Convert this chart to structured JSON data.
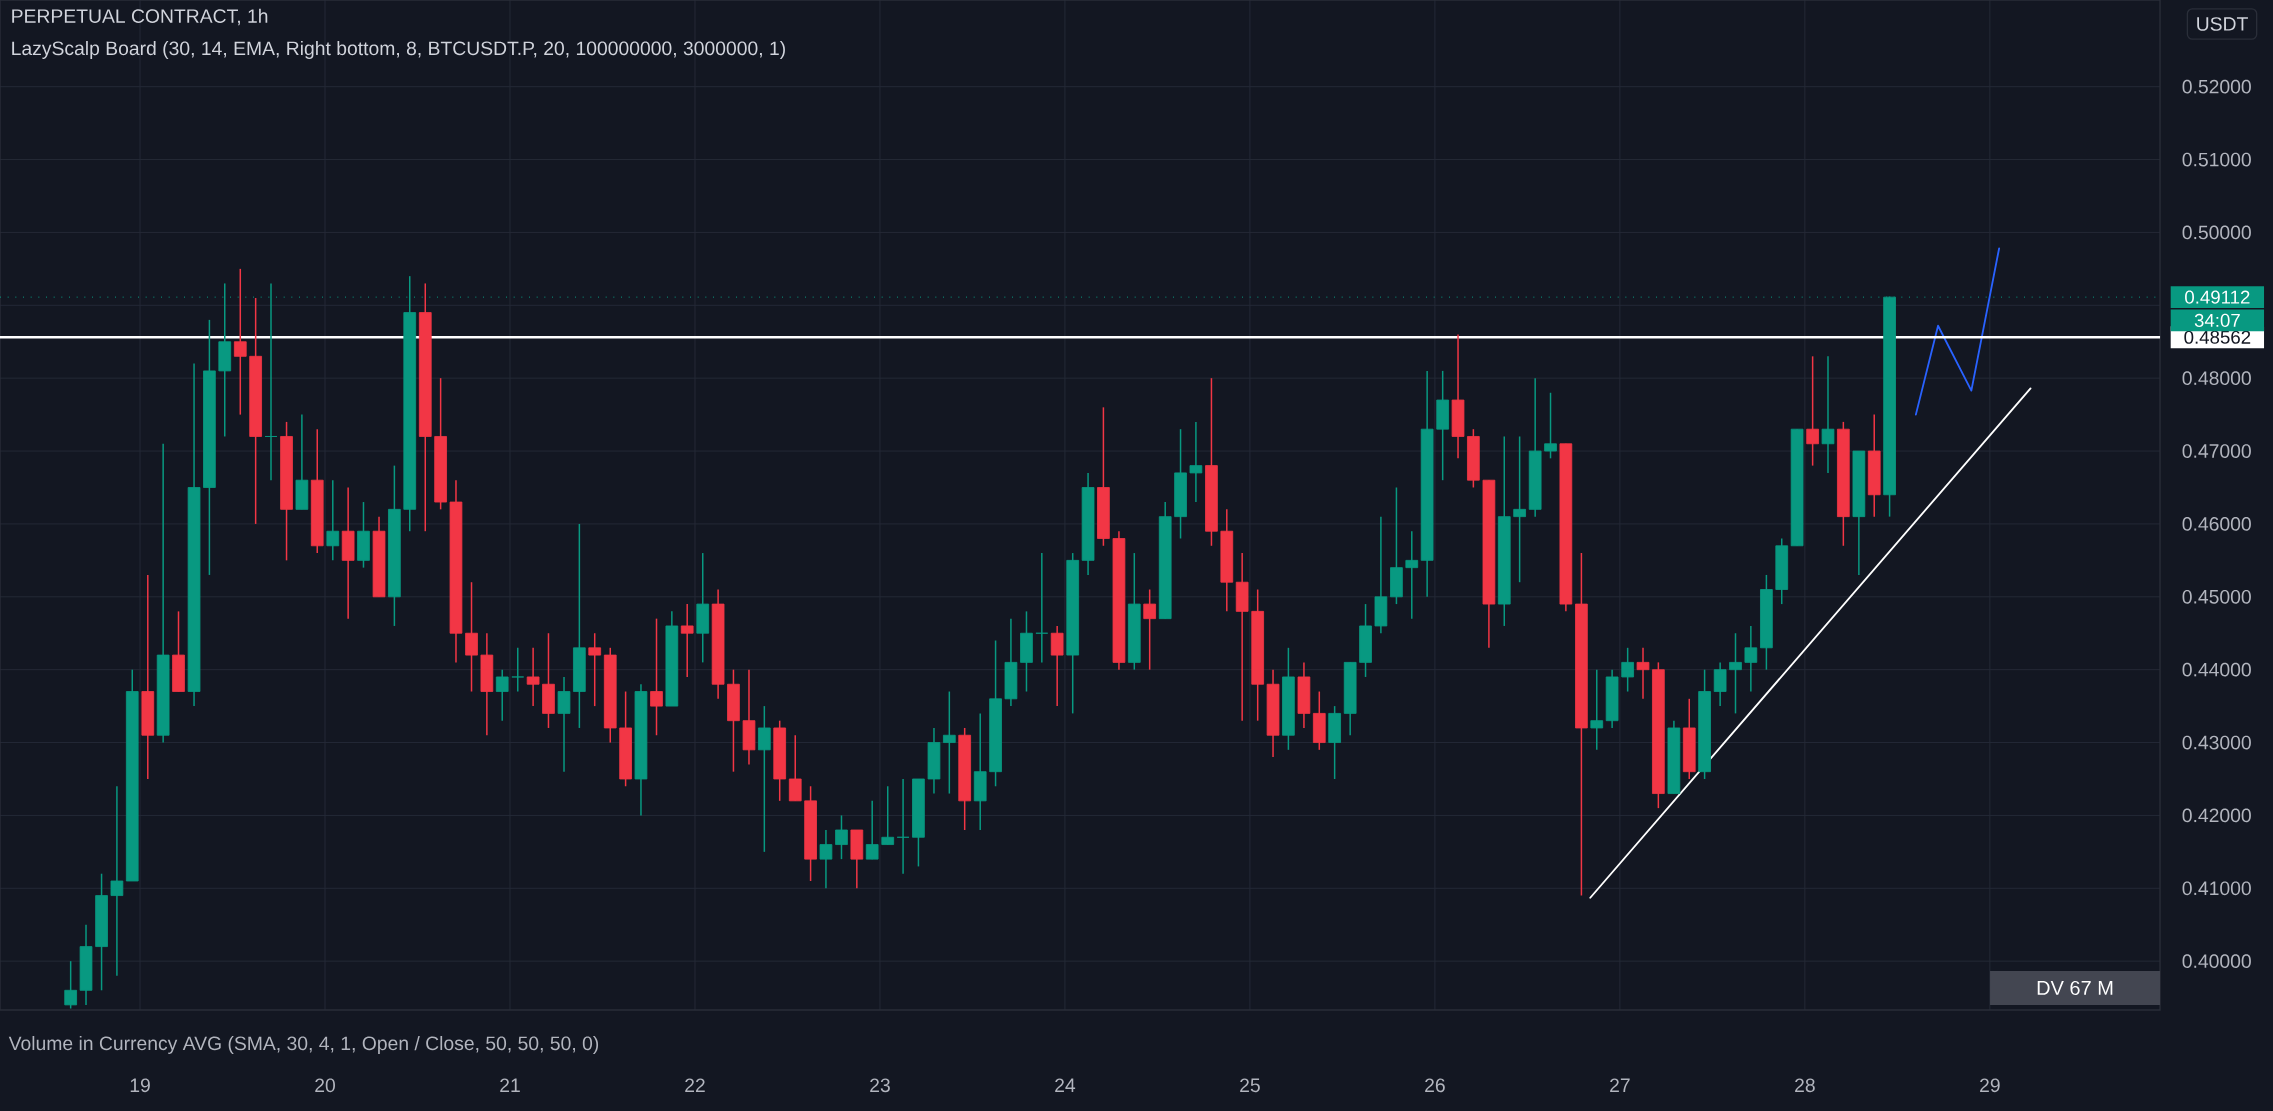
{
  "chart_data": {
    "type": "candlestick",
    "title": "PERPETUAL CONTRACT, 1h",
    "subtitle": "LazyScalp Board (30, 14, EMA, Right bottom, 8, BTCUSDT.P, 20, 100000000, 3000000, 1)",
    "ylabel": "USDT",
    "x": [
      18.625,
      18.708,
      18.792,
      18.875,
      18.958,
      19.042,
      19.125,
      19.208,
      19.292,
      19.375,
      19.458,
      19.542,
      19.625,
      19.708,
      19.792,
      19.875,
      19.958,
      20.042,
      20.125,
      20.208,
      20.292,
      20.375,
      20.458,
      20.542,
      20.625,
      20.708,
      20.792,
      20.875,
      20.958,
      21.042,
      21.125,
      21.208,
      21.292,
      21.375,
      21.458,
      21.542,
      21.625,
      21.708,
      21.792,
      21.875,
      21.958,
      22.042,
      22.125,
      22.208,
      22.292,
      22.375,
      22.458,
      22.542,
      22.625,
      22.708,
      22.792,
      22.875,
      22.958,
      23.042,
      23.125,
      23.208,
      23.292,
      23.375,
      23.458,
      23.542,
      23.625,
      23.708,
      23.792,
      23.875,
      23.958,
      24.042,
      24.125,
      24.208,
      24.292,
      24.375,
      24.458,
      24.542,
      24.625,
      24.708,
      24.792,
      24.875,
      24.958,
      25.042,
      25.125,
      25.208,
      25.292,
      25.375,
      25.458,
      25.542,
      25.625,
      25.708,
      25.792,
      25.875,
      25.958,
      26.042,
      26.125,
      26.208,
      26.292,
      26.375,
      26.458,
      26.542,
      26.625,
      26.708,
      26.792,
      26.875,
      26.958,
      27.042,
      27.125,
      27.208,
      27.292,
      27.375,
      27.458,
      27.542,
      27.625,
      27.708,
      27.792,
      27.875,
      27.958,
      28.042,
      28.125,
      28.208,
      28.292,
      28.375,
      28.458
    ],
    "ohlc": [
      [
        0.394,
        0.4,
        0.3935,
        0.396
      ],
      [
        0.396,
        0.405,
        0.394,
        0.402
      ],
      [
        0.402,
        0.412,
        0.396,
        0.409
      ],
      [
        0.409,
        0.424,
        0.398,
        0.411
      ],
      [
        0.411,
        0.44,
        0.411,
        0.437
      ],
      [
        0.437,
        0.453,
        0.425,
        0.431
      ],
      [
        0.431,
        0.471,
        0.43,
        0.442
      ],
      [
        0.442,
        0.448,
        0.437,
        0.437
      ],
      [
        0.437,
        0.482,
        0.435,
        0.465
      ],
      [
        0.465,
        0.488,
        0.453,
        0.481
      ],
      [
        0.481,
        0.493,
        0.472,
        0.485
      ],
      [
        0.485,
        0.495,
        0.475,
        0.483
      ],
      [
        0.483,
        0.491,
        0.46,
        0.472
      ],
      [
        0.472,
        0.493,
        0.466,
        0.472
      ],
      [
        0.472,
        0.474,
        0.455,
        0.462
      ],
      [
        0.462,
        0.475,
        0.462,
        0.466
      ],
      [
        0.466,
        0.473,
        0.456,
        0.457
      ],
      [
        0.457,
        0.466,
        0.455,
        0.459
      ],
      [
        0.459,
        0.465,
        0.447,
        0.455
      ],
      [
        0.455,
        0.463,
        0.454,
        0.459
      ],
      [
        0.459,
        0.461,
        0.45,
        0.45
      ],
      [
        0.45,
        0.468,
        0.446,
        0.462
      ],
      [
        0.462,
        0.494,
        0.459,
        0.489
      ],
      [
        0.489,
        0.493,
        0.459,
        0.472
      ],
      [
        0.472,
        0.48,
        0.462,
        0.463
      ],
      [
        0.463,
        0.466,
        0.441,
        0.445
      ],
      [
        0.445,
        0.452,
        0.437,
        0.442
      ],
      [
        0.442,
        0.445,
        0.431,
        0.437
      ],
      [
        0.437,
        0.44,
        0.433,
        0.439
      ],
      [
        0.439,
        0.443,
        0.437,
        0.439
      ],
      [
        0.439,
        0.443,
        0.435,
        0.438
      ],
      [
        0.438,
        0.445,
        0.432,
        0.434
      ],
      [
        0.434,
        0.439,
        0.426,
        0.437
      ],
      [
        0.437,
        0.46,
        0.432,
        0.443
      ],
      [
        0.443,
        0.445,
        0.435,
        0.442
      ],
      [
        0.442,
        0.443,
        0.43,
        0.432
      ],
      [
        0.432,
        0.437,
        0.424,
        0.425
      ],
      [
        0.425,
        0.438,
        0.42,
        0.437
      ],
      [
        0.437,
        0.447,
        0.431,
        0.435
      ],
      [
        0.435,
        0.448,
        0.435,
        0.446
      ],
      [
        0.446,
        0.449,
        0.439,
        0.445
      ],
      [
        0.445,
        0.456,
        0.441,
        0.449
      ],
      [
        0.449,
        0.451,
        0.436,
        0.438
      ],
      [
        0.438,
        0.44,
        0.426,
        0.433
      ],
      [
        0.433,
        0.44,
        0.427,
        0.429
      ],
      [
        0.429,
        0.435,
        0.415,
        0.432
      ],
      [
        0.432,
        0.433,
        0.422,
        0.425
      ],
      [
        0.425,
        0.431,
        0.422,
        0.422
      ],
      [
        0.422,
        0.424,
        0.411,
        0.414
      ],
      [
        0.414,
        0.418,
        0.41,
        0.416
      ],
      [
        0.416,
        0.42,
        0.414,
        0.418
      ],
      [
        0.418,
        0.418,
        0.41,
        0.414
      ],
      [
        0.414,
        0.422,
        0.414,
        0.416
      ],
      [
        0.416,
        0.424,
        0.416,
        0.417
      ],
      [
        0.417,
        0.425,
        0.412,
        0.417
      ],
      [
        0.417,
        0.425,
        0.413,
        0.425
      ],
      [
        0.425,
        0.432,
        0.423,
        0.43
      ],
      [
        0.43,
        0.437,
        0.423,
        0.431
      ],
      [
        0.431,
        0.432,
        0.418,
        0.422
      ],
      [
        0.422,
        0.434,
        0.418,
        0.426
      ],
      [
        0.426,
        0.444,
        0.424,
        0.436
      ],
      [
        0.436,
        0.447,
        0.435,
        0.441
      ],
      [
        0.441,
        0.448,
        0.437,
        0.445
      ],
      [
        0.445,
        0.456,
        0.441,
        0.445
      ],
      [
        0.445,
        0.446,
        0.435,
        0.442
      ],
      [
        0.442,
        0.456,
        0.434,
        0.455
      ],
      [
        0.455,
        0.467,
        0.453,
        0.465
      ],
      [
        0.465,
        0.476,
        0.457,
        0.458
      ],
      [
        0.458,
        0.459,
        0.44,
        0.441
      ],
      [
        0.441,
        0.456,
        0.44,
        0.449
      ],
      [
        0.449,
        0.451,
        0.44,
        0.447
      ],
      [
        0.447,
        0.463,
        0.447,
        0.461
      ],
      [
        0.461,
        0.473,
        0.458,
        0.467
      ],
      [
        0.467,
        0.474,
        0.463,
        0.468
      ],
      [
        0.468,
        0.48,
        0.457,
        0.459
      ],
      [
        0.459,
        0.462,
        0.448,
        0.452
      ],
      [
        0.452,
        0.456,
        0.433,
        0.448
      ],
      [
        0.448,
        0.451,
        0.433,
        0.438
      ],
      [
        0.438,
        0.44,
        0.428,
        0.431
      ],
      [
        0.431,
        0.443,
        0.429,
        0.439
      ],
      [
        0.439,
        0.441,
        0.432,
        0.434
      ],
      [
        0.434,
        0.437,
        0.429,
        0.43
      ],
      [
        0.43,
        0.435,
        0.425,
        0.434
      ],
      [
        0.434,
        0.441,
        0.431,
        0.441
      ],
      [
        0.441,
        0.449,
        0.439,
        0.446
      ],
      [
        0.446,
        0.461,
        0.445,
        0.45
      ],
      [
        0.45,
        0.465,
        0.449,
        0.454
      ],
      [
        0.454,
        0.459,
        0.447,
        0.455
      ],
      [
        0.455,
        0.481,
        0.45,
        0.473
      ],
      [
        0.473,
        0.481,
        0.466,
        0.477
      ],
      [
        0.477,
        0.486,
        0.469,
        0.472
      ],
      [
        0.472,
        0.473,
        0.465,
        0.466
      ],
      [
        0.466,
        0.466,
        0.443,
        0.449
      ],
      [
        0.449,
        0.472,
        0.446,
        0.461
      ],
      [
        0.461,
        0.472,
        0.452,
        0.462
      ],
      [
        0.462,
        0.48,
        0.461,
        0.47
      ],
      [
        0.47,
        0.478,
        0.469,
        0.471
      ],
      [
        0.471,
        0.471,
        0.448,
        0.449
      ],
      [
        0.449,
        0.456,
        0.409,
        0.432
      ],
      [
        0.432,
        0.44,
        0.429,
        0.433
      ],
      [
        0.433,
        0.44,
        0.432,
        0.439
      ],
      [
        0.439,
        0.443,
        0.437,
        0.441
      ],
      [
        0.441,
        0.443,
        0.436,
        0.44
      ],
      [
        0.44,
        0.441,
        0.421,
        0.423
      ],
      [
        0.423,
        0.433,
        0.423,
        0.432
      ],
      [
        0.432,
        0.436,
        0.425,
        0.426
      ],
      [
        0.426,
        0.44,
        0.425,
        0.437
      ],
      [
        0.437,
        0.441,
        0.435,
        0.44
      ],
      [
        0.44,
        0.445,
        0.434,
        0.441
      ],
      [
        0.441,
        0.446,
        0.437,
        0.443
      ],
      [
        0.443,
        0.453,
        0.44,
        0.451
      ],
      [
        0.451,
        0.458,
        0.449,
        0.457
      ],
      [
        0.457,
        0.473,
        0.457,
        0.473
      ],
      [
        0.473,
        0.483,
        0.468,
        0.471
      ],
      [
        0.471,
        0.483,
        0.467,
        0.473
      ],
      [
        0.473,
        0.474,
        0.457,
        0.461
      ],
      [
        0.461,
        0.47,
        0.453,
        0.47
      ],
      [
        0.47,
        0.475,
        0.461,
        0.464
      ],
      [
        0.464,
        0.4912,
        0.461,
        0.49112
      ]
    ],
    "series": [
      {
        "type": "line",
        "color": "#ffffff",
        "x": [
          26.84,
          29.22
        ],
        "values": [
          0.4087,
          0.4786
        ]
      },
      {
        "type": "line",
        "color": "#2962ff",
        "x": [
          28.6,
          28.72,
          28.9,
          29.05
        ],
        "values": [
          0.475,
          0.4872,
          0.4783,
          0.4978
        ]
      }
    ],
    "ref_lines": [
      {
        "axis": "y",
        "value": 0.49112,
        "label": "0.49112",
        "color": "#089981",
        "line_style": "dotted"
      },
      {
        "axis": "y",
        "value": 0.48562,
        "label": "0.48562",
        "color": "#ffffff",
        "line_style": "solid"
      }
    ],
    "annotations": [
      "34:07",
      "DV 67 M",
      "Volume in Currency AVG (SMA, 30, 4, 1, Open / Close, 50, 50, 50, 0)"
    ],
    "xlim": [
      18.243,
      29.92
    ],
    "ylim": [
      0.3933,
      0.5319
    ],
    "xticks": [
      19,
      20,
      21,
      22,
      23,
      24,
      25,
      26,
      27,
      28,
      29
    ],
    "yticks": [
      {
        "value": 0.4,
        "label": "0.40000"
      },
      {
        "value": 0.41,
        "label": "0.41000"
      },
      {
        "value": 0.42,
        "label": "0.42000"
      },
      {
        "value": 0.43,
        "label": "0.43000"
      },
      {
        "value": 0.44,
        "label": "0.44000"
      },
      {
        "value": 0.45,
        "label": "0.45000"
      },
      {
        "value": 0.46,
        "label": "0.46000"
      },
      {
        "value": 0.47,
        "label": "0.47000"
      },
      {
        "value": 0.48,
        "label": "0.48000"
      },
      {
        "value": 0.49,
        "label": null
      },
      {
        "value": 0.5,
        "label": "0.50000"
      },
      {
        "value": 0.51,
        "label": "0.51000"
      },
      {
        "value": 0.52,
        "label": "0.52000"
      }
    ],
    "grid": true
  }
}
